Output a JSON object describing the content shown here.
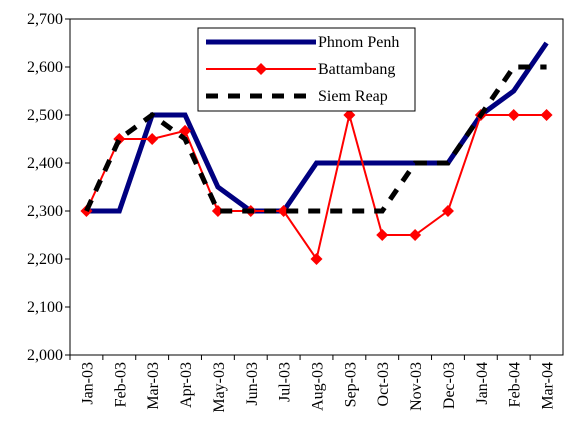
{
  "chart_data": {
    "type": "line",
    "categories": [
      "Jan-03",
      "Feb-03",
      "Mar-03",
      "Apr-03",
      "May-03",
      "Jun-03",
      "Jul-03",
      "Aug-03",
      "Sep-03",
      "Oct-03",
      "Nov-03",
      "Dec-03",
      "Jan-04",
      "Feb-04",
      "Mar-04"
    ],
    "series": [
      {
        "name": "Phnom Penh",
        "color": "#000080",
        "values": [
          2300,
          2300,
          2500,
          2500,
          2350,
          2300,
          2300,
          2400,
          2400,
          2400,
          2400,
          2400,
          2500,
          2550,
          2650
        ]
      },
      {
        "name": "Battambang",
        "color": "#ff0000",
        "marker": "diamond",
        "values": [
          2300,
          2450,
          2450,
          2467,
          2300,
          2300,
          2300,
          2200,
          2500,
          2250,
          2250,
          2300,
          2500,
          2500,
          2500
        ]
      },
      {
        "name": "Siem Reap",
        "color": "#000000",
        "dashed": true,
        "values": [
          2300,
          2450,
          2500,
          2450,
          2300,
          2300,
          2300,
          2300,
          2300,
          2300,
          2400,
          2400,
          2500,
          2600,
          2600
        ]
      }
    ],
    "ylim": [
      2000,
      2700
    ],
    "yticks": [
      {
        "value": 2000,
        "label": "2,000"
      },
      {
        "value": 2100,
        "label": "2,100"
      },
      {
        "value": 2200,
        "label": "2,200"
      },
      {
        "value": 2300,
        "label": "2,300"
      },
      {
        "value": 2400,
        "label": "2,400"
      },
      {
        "value": 2500,
        "label": "2,500"
      },
      {
        "value": 2600,
        "label": "2,600"
      },
      {
        "value": 2700,
        "label": "2,700"
      }
    ],
    "grid": false
  }
}
